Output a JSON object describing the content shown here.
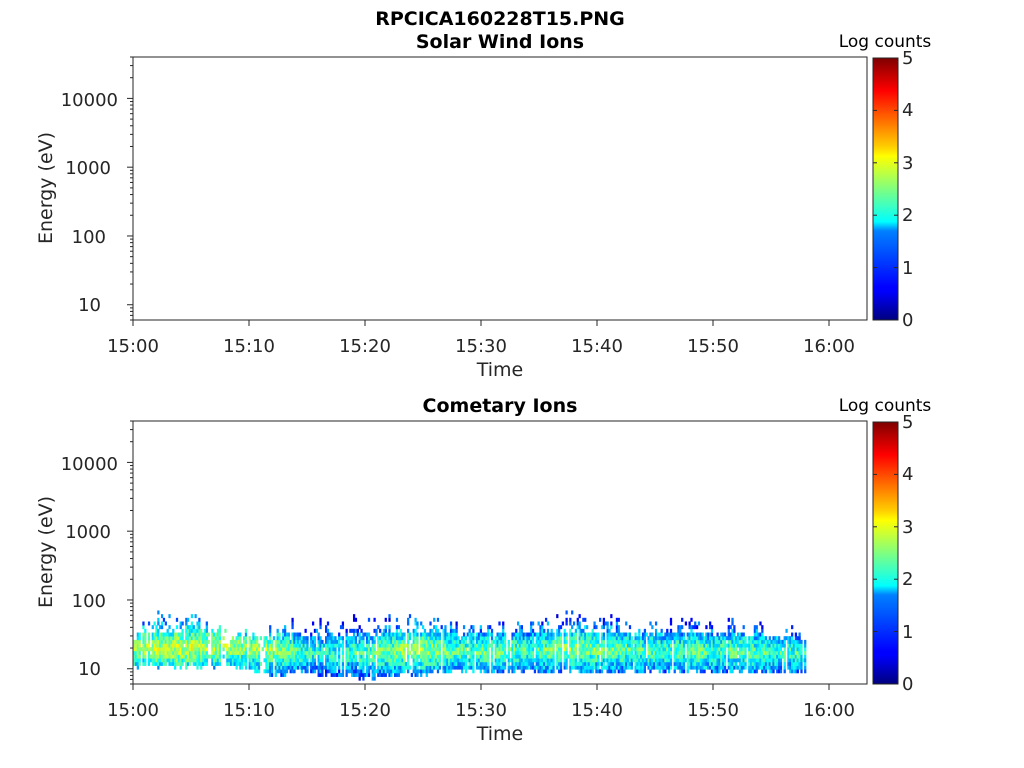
{
  "figure_title": "RPCICA160228T15.PNG",
  "colorbar": {
    "label": "Log counts",
    "ticks": [
      "0",
      "1",
      "2",
      "3",
      "4",
      "5"
    ],
    "range": [
      0,
      5
    ],
    "colormap": "jet"
  },
  "chart_data": [
    {
      "type": "heatmap",
      "title": "Solar Wind Ions",
      "xlabel": "Time",
      "ylabel": "Energy (eV)",
      "x_ticks": [
        "15:00",
        "15:10",
        "15:20",
        "15:30",
        "15:40",
        "15:50",
        "16:00"
      ],
      "y_ticks": [
        "10",
        "100",
        "1000",
        "10000"
      ],
      "xlim": [
        "15:00",
        "16:03"
      ],
      "ylim": [
        6,
        40000
      ],
      "yscale": "log",
      "data": "empty (no counts)"
    },
    {
      "type": "heatmap",
      "title": "Cometary Ions",
      "xlabel": "Time",
      "ylabel": "Energy (eV)",
      "x_ticks": [
        "15:00",
        "15:10",
        "15:20",
        "15:30",
        "15:40",
        "15:50",
        "16:00"
      ],
      "y_ticks": [
        "10",
        "100",
        "1000",
        "10000"
      ],
      "xlim": [
        "15:00",
        "16:03"
      ],
      "ylim": [
        6,
        40000
      ],
      "yscale": "log",
      "data_time_range": [
        "15:00",
        "15:57"
      ],
      "columns": [
        {
          "t": "15:00",
          "emin": 11,
          "emax": 40,
          "core": 20,
          "peak": 2.6
        },
        {
          "t": "15:02",
          "emin": 11,
          "emax": 80,
          "core": 20,
          "peak": 2.8
        },
        {
          "t": "15:04",
          "emin": 11,
          "emax": 80,
          "core": 20,
          "peak": 2.9
        },
        {
          "t": "15:06",
          "emin": 11,
          "emax": 60,
          "core": 21,
          "peak": 2.8
        },
        {
          "t": "15:08",
          "emin": 11,
          "emax": 40,
          "core": 21,
          "peak": 2.7
        },
        {
          "t": "15:10",
          "emin": 10,
          "emax": 40,
          "core": 20,
          "peak": 2.6
        },
        {
          "t": "15:12",
          "emin": 8,
          "emax": 50,
          "core": 19,
          "peak": 2.7
        },
        {
          "t": "15:14",
          "emin": 9,
          "emax": 55,
          "core": 18,
          "peak": 2.3
        },
        {
          "t": "15:16",
          "emin": 8,
          "emax": 55,
          "core": 17,
          "peak": 2.1
        },
        {
          "t": "15:18",
          "emin": 8,
          "emax": 60,
          "core": 17,
          "peak": 2.2
        },
        {
          "t": "15:20",
          "emin": 7,
          "emax": 65,
          "core": 17,
          "peak": 2.3
        },
        {
          "t": "15:22",
          "emin": 8,
          "emax": 80,
          "core": 18,
          "peak": 2.5
        },
        {
          "t": "15:24",
          "emin": 8,
          "emax": 80,
          "core": 19,
          "peak": 2.7
        },
        {
          "t": "15:26",
          "emin": 9,
          "emax": 70,
          "core": 19,
          "peak": 2.6
        },
        {
          "t": "15:28",
          "emin": 9,
          "emax": 50,
          "core": 18,
          "peak": 2.3
        },
        {
          "t": "15:30",
          "emin": 9,
          "emax": 55,
          "core": 18,
          "peak": 2.4
        },
        {
          "t": "15:32",
          "emin": 9,
          "emax": 50,
          "core": 18,
          "peak": 2.4
        },
        {
          "t": "15:34",
          "emin": 9,
          "emax": 55,
          "core": 18,
          "peak": 2.3
        },
        {
          "t": "15:36",
          "emin": 9,
          "emax": 70,
          "core": 19,
          "peak": 2.5
        },
        {
          "t": "15:38",
          "emin": 9,
          "emax": 80,
          "core": 20,
          "peak": 2.6
        },
        {
          "t": "15:40",
          "emin": 9,
          "emax": 70,
          "core": 19,
          "peak": 2.5
        },
        {
          "t": "15:42",
          "emin": 9,
          "emax": 60,
          "core": 19,
          "peak": 2.4
        },
        {
          "t": "15:44",
          "emin": 9,
          "emax": 55,
          "core": 18,
          "peak": 2.3
        },
        {
          "t": "15:46",
          "emin": 9,
          "emax": 55,
          "core": 18,
          "peak": 2.3
        },
        {
          "t": "15:48",
          "emin": 9,
          "emax": 60,
          "core": 18,
          "peak": 2.4
        },
        {
          "t": "15:50",
          "emin": 9,
          "emax": 55,
          "core": 18,
          "peak": 2.3
        },
        {
          "t": "15:52",
          "emin": 9,
          "emax": 55,
          "core": 18,
          "peak": 2.4
        },
        {
          "t": "15:54",
          "emin": 9,
          "emax": 50,
          "core": 17,
          "peak": 2.3
        },
        {
          "t": "15:56",
          "emin": 9,
          "emax": 50,
          "core": 17,
          "peak": 2.2
        }
      ]
    }
  ]
}
